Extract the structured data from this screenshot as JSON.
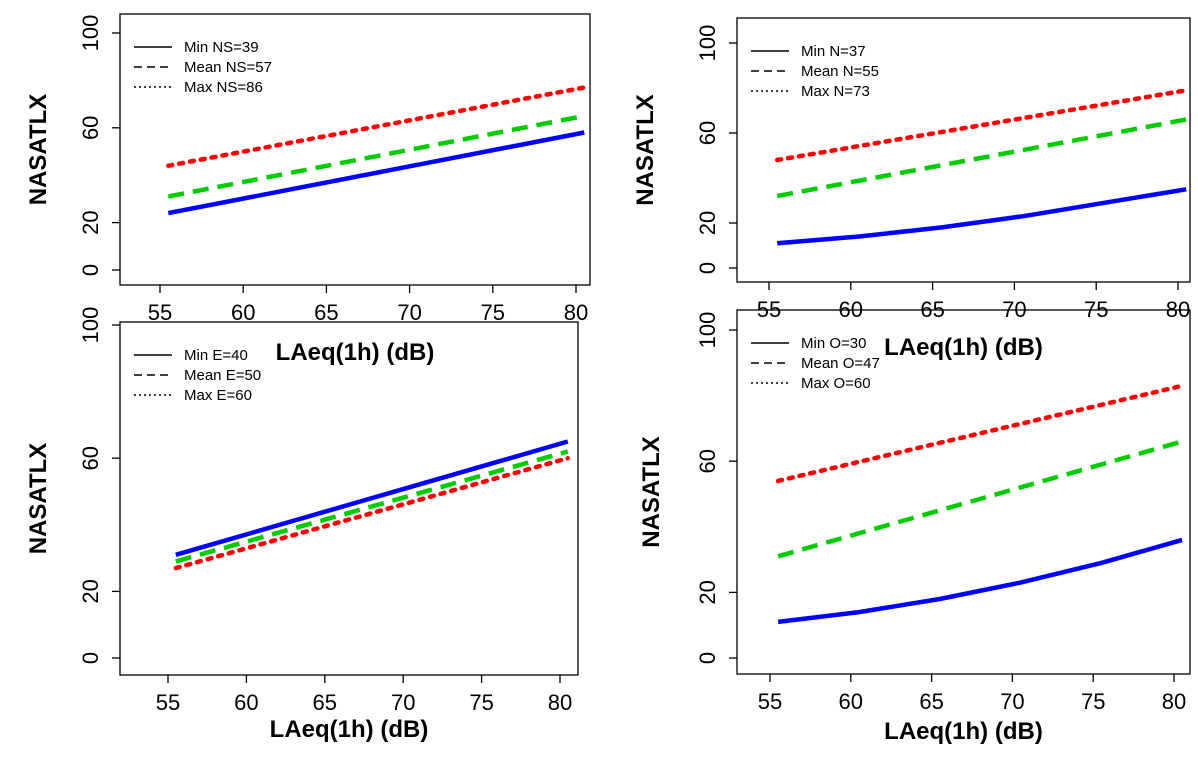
{
  "chart_data": [
    {
      "type": "line",
      "xlabel": "LAeq(1h) (dB)",
      "ylabel": "NASATLX",
      "xlim": [
        55,
        80
      ],
      "ylim": [
        0,
        100
      ],
      "x_ticks": [
        "55",
        "60",
        "65",
        "70",
        "75",
        "80"
      ],
      "y_ticks": [
        "0",
        "20",
        "60",
        "100"
      ],
      "legend_position": "top-left",
      "series": [
        {
          "name": "Min NS=39",
          "color": "#0000ff",
          "line_style": "solid",
          "x": [
            55.5,
            80.5
          ],
          "y": [
            24,
            58
          ]
        },
        {
          "name": "Mean NS=57",
          "color": "#00cc00",
          "line_style": "dashed",
          "x": [
            55.5,
            80.5
          ],
          "y": [
            31,
            65
          ]
        },
        {
          "name": "Max NS=86",
          "color": "#ff0000",
          "line_style": "dotted",
          "x": [
            55.5,
            80.5
          ],
          "y": [
            44,
            77
          ]
        }
      ]
    },
    {
      "type": "line",
      "xlabel": "LAeq(1h) (dB)",
      "ylabel": "NASATLX",
      "xlim": [
        55,
        80
      ],
      "ylim": [
        0,
        100
      ],
      "x_ticks": [
        "55",
        "60",
        "65",
        "70",
        "75",
        "80"
      ],
      "y_ticks": [
        "0",
        "20",
        "60",
        "100"
      ],
      "legend_position": "top-left",
      "series": [
        {
          "name": "Min N=37",
          "color": "#0000ff",
          "line_style": "solid",
          "x": [
            55.5,
            60.5,
            65.5,
            70.5,
            75.5,
            80.5
          ],
          "y": [
            11,
            14,
            18,
            23,
            29,
            35
          ]
        },
        {
          "name": "Mean N=55",
          "color": "#00cc00",
          "line_style": "dashed",
          "x": [
            55.5,
            80.5
          ],
          "y": [
            32,
            66
          ]
        },
        {
          "name": "Max N=73",
          "color": "#ff0000",
          "line_style": "dotted",
          "x": [
            55.5,
            80.5
          ],
          "y": [
            48,
            79
          ]
        }
      ]
    },
    {
      "type": "line",
      "xlabel": "LAeq(1h) (dB)",
      "ylabel": "NASATLX",
      "xlim": [
        55,
        80
      ],
      "ylim": [
        0,
        100
      ],
      "x_ticks": [
        "55",
        "60",
        "65",
        "70",
        "75",
        "80"
      ],
      "y_ticks": [
        "0",
        "20",
        "60",
        "100"
      ],
      "legend_position": "top-left",
      "series": [
        {
          "name": "Min E=40",
          "color": "#0000ff",
          "line_style": "solid",
          "x": [
            55.5,
            80.5
          ],
          "y": [
            31,
            65
          ]
        },
        {
          "name": "Mean E=50",
          "color": "#00cc00",
          "line_style": "dashed",
          "x": [
            55.5,
            80.5
          ],
          "y": [
            29,
            62
          ]
        },
        {
          "name": "Max E=60",
          "color": "#ff0000",
          "line_style": "dotted",
          "x": [
            55.5,
            80.5
          ],
          "y": [
            27,
            60
          ]
        }
      ]
    },
    {
      "type": "line",
      "xlabel": "LAeq(1h) (dB)",
      "ylabel": "NASATLX",
      "xlim": [
        55,
        80
      ],
      "ylim": [
        0,
        100
      ],
      "x_ticks": [
        "55",
        "60",
        "65",
        "70",
        "75",
        "80"
      ],
      "y_ticks": [
        "0",
        "20",
        "60",
        "100"
      ],
      "legend_position": "top-left",
      "series": [
        {
          "name": "Min O=30",
          "color": "#0000ff",
          "line_style": "solid",
          "x": [
            55.5,
            60.5,
            65.5,
            70.5,
            75.5,
            80.5
          ],
          "y": [
            11,
            14,
            18,
            23,
            29,
            36
          ]
        },
        {
          "name": "Mean O=47",
          "color": "#00cc00",
          "line_style": "dashed",
          "x": [
            55.5,
            80.5
          ],
          "y": [
            31,
            66
          ]
        },
        {
          "name": "Max O=60",
          "color": "#ff0000",
          "line_style": "dotted",
          "x": [
            55.5,
            80.5
          ],
          "y": [
            54,
            83
          ]
        }
      ]
    }
  ]
}
